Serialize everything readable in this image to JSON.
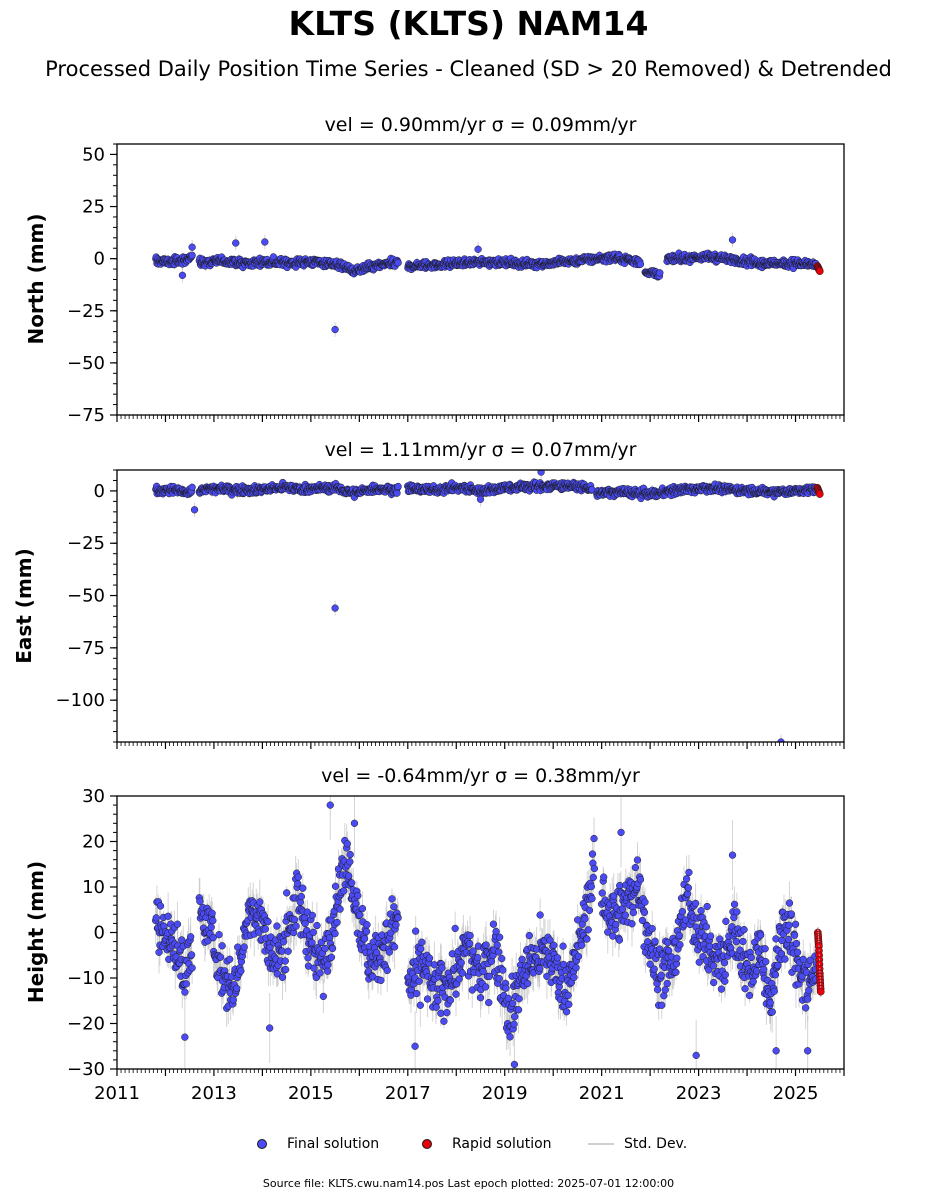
{
  "page": {
    "title": "KLTS (KLTS) NAM14",
    "subtitle": "Processed Daily Position Time Series - Cleaned (SD > 20 Removed) & Detrended",
    "footer": "Source file: KLTS.cwu.nam14.pos  Last epoch plotted: 2025-07-01 12:00:00"
  },
  "legend": {
    "final": "Final solution",
    "rapid": "Rapid solution",
    "std": "Std. Dev."
  },
  "colors": {
    "final": "#4b4bf5",
    "rapid": "#e8000b",
    "std": "#b0b0b0",
    "marker_edge": "#1a1a1a"
  },
  "chart_data": [
    {
      "type": "scatter",
      "title": "vel = 0.90mm/yr   σ = 0.09mm/yr",
      "ylabel": "North (mm)",
      "xlim": [
        2011,
        2026
      ],
      "ylim": [
        -75,
        55
      ],
      "yticks": [
        "−75",
        "−50",
        "−25",
        "0",
        "25",
        "50"
      ],
      "ytick_values": [
        -75,
        -50,
        -25,
        0,
        25,
        50
      ],
      "x_tick_labels_shown": false,
      "series": [
        {
          "name": "Final solution",
          "segments": [
            {
              "x": [
                2011.8,
                2012.1,
                2012.4,
                2012.55
              ],
              "y": [
                -1.0,
                -1.5,
                -0.8,
                1.5
              ]
            },
            {
              "x": [
                2012.7,
                2013.2,
                2013.6,
                2014.0,
                2014.5,
                2015.0,
                2015.5,
                2015.9,
                2016.3,
                2016.8
              ],
              "y": [
                -2.0,
                -1.0,
                -2.5,
                -1.5,
                -2.0,
                -1.5,
                -2.5,
                -6.0,
                -3.5,
                -2.0
              ]
            },
            {
              "x": [
                2017.0,
                2017.6,
                2018.2,
                2018.8,
                2019.4,
                2020.0,
                2020.6,
                2021.2,
                2021.8
              ],
              "y": [
                -3.5,
                -3.0,
                -2.0,
                -1.5,
                -2.5,
                -2.0,
                -0.5,
                0.5,
                -1.5
              ]
            },
            {
              "x": [
                2021.9,
                2022.2
              ],
              "y": [
                -6.5,
                -7.0
              ]
            },
            {
              "x": [
                2022.35,
                2022.8,
                2023.3,
                2023.8,
                2024.3,
                2024.8,
                2025.3,
                2025.43
              ],
              "y": [
                -0.5,
                0.5,
                0.8,
                -0.8,
                -2.5,
                -2.0,
                -2.5,
                -4.0
              ]
            }
          ],
          "outliers": {
            "x": [
              2012.35,
              2012.55,
              2013.45,
              2014.05,
              2015.5,
              2018.45,
              2023.7
            ],
            "y": [
              -8,
              5.5,
              7.5,
              8,
              -34,
              4.5,
              9
            ]
          }
        },
        {
          "name": "Rapid solution",
          "x": [
            2025.45,
            2025.5
          ],
          "y": [
            -3.5,
            -6.0
          ]
        }
      ]
    },
    {
      "type": "scatter",
      "title": "vel = 1.11mm/yr   σ = 0.07mm/yr",
      "ylabel": "East (mm)",
      "xlim": [
        2011,
        2026
      ],
      "ylim": [
        -120,
        10
      ],
      "yticks": [
        "−100",
        "−75",
        "−50",
        "−25",
        "0"
      ],
      "ytick_values": [
        -100,
        -75,
        -50,
        -25,
        0
      ],
      "x_tick_labels_shown": false,
      "series": [
        {
          "name": "Final solution",
          "segments": [
            {
              "x": [
                2011.8,
                2012.2,
                2012.55
              ],
              "y": [
                0.0,
                0.5,
                -0.5
              ]
            },
            {
              "x": [
                2012.7,
                2013.2,
                2013.8,
                2014.4,
                2015.0,
                2015.5,
                2015.9,
                2016.3,
                2016.8
              ],
              "y": [
                0.5,
                1.0,
                0.5,
                1.5,
                1.0,
                1.5,
                -1.0,
                1.0,
                0.5
              ]
            },
            {
              "x": [
                2017.0,
                2017.5,
                2018.0,
                2018.5,
                2019.0,
                2019.5,
                2020.0,
                2020.6,
                2020.8
              ],
              "y": [
                1.0,
                0.5,
                1.5,
                0.0,
                1.5,
                2.0,
                2.5,
                2.0,
                0.5
              ]
            },
            {
              "x": [
                2020.9,
                2021.4,
                2022.0,
                2022.6,
                2023.2,
                2023.8,
                2024.4,
                2025.0,
                2025.43
              ],
              "y": [
                -1.0,
                -0.5,
                -1.5,
                0.5,
                1.5,
                0.5,
                -0.5,
                0.0,
                0.5
              ]
            }
          ],
          "outliers": {
            "x": [
              2012.6,
              2015.5,
              2018.5,
              2019.75,
              2024.7
            ],
            "y": [
              -9,
              -56,
              -4,
              9,
              -120
            ]
          }
        },
        {
          "name": "Rapid solution",
          "x": [
            2025.45,
            2025.5
          ],
          "y": [
            1.5,
            -1.5
          ]
        }
      ]
    },
    {
      "type": "scatter",
      "title": "vel = -0.64mm/yr   σ = 0.38mm/yr",
      "ylabel": "Height (mm)",
      "xlim": [
        2011,
        2026
      ],
      "ylim": [
        -30,
        30
      ],
      "yticks": [
        "−30",
        "−20",
        "−10",
        "0",
        "10",
        "20",
        "30"
      ],
      "ytick_values": [
        -30,
        -20,
        -10,
        0,
        10,
        20,
        30
      ],
      "xtick_values": [
        2011,
        2013,
        2015,
        2017,
        2019,
        2021,
        2023,
        2025
      ],
      "xticks": [
        "2011",
        "2013",
        "2015",
        "2017",
        "2019",
        "2021",
        "2023",
        "2025"
      ],
      "series": [
        {
          "name": "Final solution",
          "segments": [
            {
              "x": [
                2011.8,
                2012.1,
                2012.4,
                2012.55
              ],
              "y": [
                3,
                -2,
                -8,
                -4
              ]
            },
            {
              "x": [
                2012.7,
                2012.9,
                2013.2,
                2013.45,
                2013.75,
                2014.0,
                2014.25,
                2014.5,
                2014.75,
                2015.0,
                2015.25,
                2015.5,
                2015.75,
                2016.0,
                2016.25,
                2016.5,
                2016.8
              ],
              "y": [
                3,
                1,
                -9,
                -12,
                6,
                2,
                -7,
                0,
                6,
                -2,
                -8,
                6,
                18,
                3,
                -8,
                -3,
                3
              ]
            },
            {
              "x": [
                2017.0,
                2017.3,
                2017.6,
                2017.9,
                2018.2,
                2018.5,
                2018.8,
                2019.1,
                2019.4,
                2019.7,
                2020.0,
                2020.3,
                2020.6,
                2020.85
              ],
              "y": [
                -12,
                -7,
                -14,
                -10,
                -4,
                -10,
                -2,
                -18,
                -8,
                -5,
                -6,
                -12,
                0,
                14
              ]
            },
            {
              "x": [
                2021.0,
                2021.25,
                2021.5,
                2021.75,
                2022.0,
                2022.25,
                2022.5,
                2022.75,
                2023.0,
                2023.25,
                2023.5,
                2023.75,
                2024.0,
                2024.25,
                2024.5,
                2024.75,
                2025.0,
                2025.25,
                2025.43
              ],
              "y": [
                8,
                3,
                6,
                12,
                -4,
                -10,
                -6,
                8,
                1,
                -5,
                -8,
                2,
                -9,
                -4,
                -14,
                2,
                -4,
                -12,
                -8
              ]
            }
          ],
          "outliers": {
            "x": [
              2012.4,
              2014.15,
              2015.4,
              2015.9,
              2017.15,
              2019.2,
              2021.4,
              2022.95,
              2023.7,
              2024.6,
              2025.25
            ],
            "y": [
              -23,
              -21,
              28,
              24,
              -25,
              -29,
              22,
              -27,
              17,
              -26,
              -26
            ]
          }
        },
        {
          "name": "Rapid solution",
          "x": [
            2025.46,
            2025.48,
            2025.5,
            2025.52
          ],
          "y": [
            0,
            -3,
            -9,
            -13
          ]
        }
      ]
    }
  ]
}
